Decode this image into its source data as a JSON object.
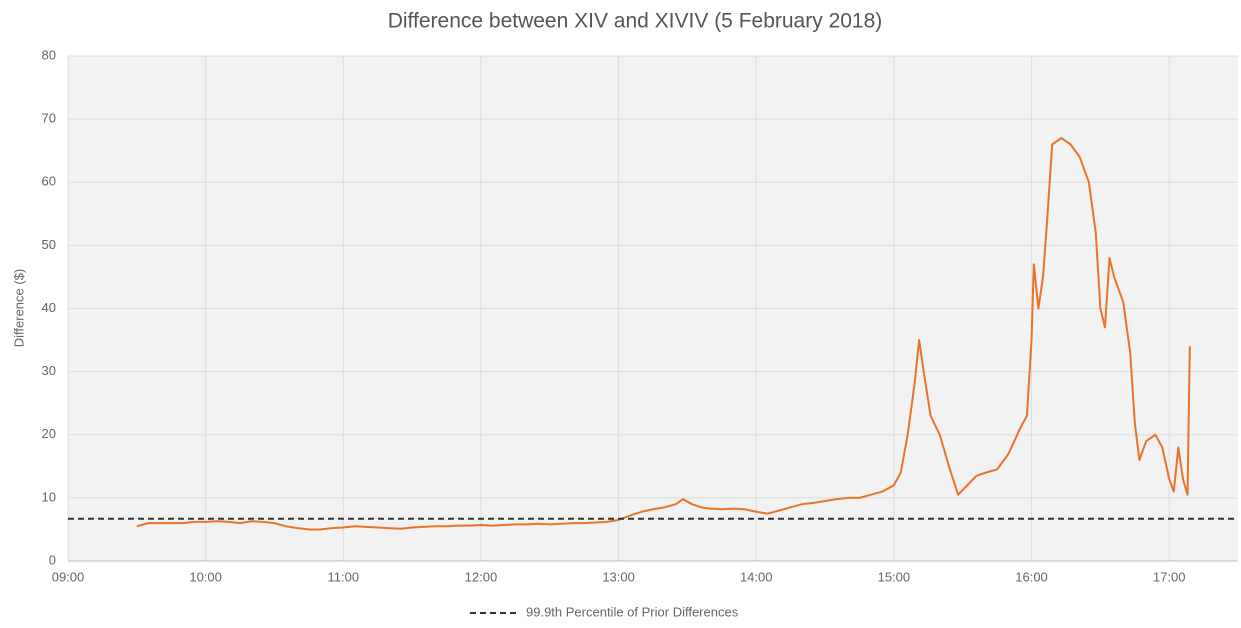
{
  "chart_data": {
    "type": "line",
    "title": "Difference between XIV and XIVIV (5 February 2018)",
    "ylabel": "Difference ($)",
    "x": [
      "09:30",
      "09:35",
      "09:40",
      "09:45",
      "09:50",
      "09:55",
      "10:00",
      "10:05",
      "10:10",
      "10:15",
      "10:20",
      "10:25",
      "10:30",
      "10:35",
      "10:40",
      "10:45",
      "10:50",
      "10:55",
      "11:00",
      "11:05",
      "11:10",
      "11:15",
      "11:20",
      "11:25",
      "11:30",
      "11:35",
      "11:40",
      "11:45",
      "11:50",
      "11:55",
      "12:00",
      "12:05",
      "12:10",
      "12:15",
      "12:20",
      "12:25",
      "12:30",
      "12:35",
      "12:40",
      "12:45",
      "12:50",
      "12:55",
      "13:00",
      "13:05",
      "13:10",
      "13:15",
      "13:20",
      "13:25",
      "13:28",
      "13:32",
      "13:36",
      "13:40",
      "13:45",
      "13:50",
      "13:55",
      "14:00",
      "14:05",
      "14:10",
      "14:15",
      "14:20",
      "14:25",
      "14:30",
      "14:35",
      "14:40",
      "14:45",
      "14:50",
      "14:55",
      "15:00",
      "15:03",
      "15:06",
      "15:09",
      "15:11",
      "15:13",
      "15:16",
      "15:20",
      "15:24",
      "15:28",
      "15:32",
      "15:36",
      "15:40",
      "15:45",
      "15:50",
      "15:55",
      "15:58",
      "16:00",
      "16:01",
      "16:03",
      "16:05",
      "16:07",
      "16:09",
      "16:13",
      "16:17",
      "16:21",
      "16:25",
      "16:28",
      "16:30",
      "16:32",
      "16:34",
      "16:36",
      "16:40",
      "16:43",
      "16:45",
      "16:47",
      "16:50",
      "16:54",
      "16:57",
      "17:00",
      "17:02",
      "17:04",
      "17:06",
      "17:08",
      "17:09"
    ],
    "series": [
      {
        "color": "#e8742a",
        "values": [
          5.5,
          6,
          6,
          6,
          6,
          6.2,
          6.2,
          6.3,
          6.2,
          6,
          6.3,
          6.2,
          6,
          5.5,
          5.2,
          5,
          5,
          5.2,
          5.3,
          5.5,
          5.4,
          5.3,
          5.2,
          5.1,
          5.3,
          5.4,
          5.5,
          5.5,
          5.6,
          5.6,
          5.7,
          5.6,
          5.7,
          5.8,
          5.8,
          5.9,
          5.8,
          5.9,
          6,
          6,
          6.1,
          6.2,
          6.5,
          7.2,
          7.8,
          8.2,
          8.5,
          9,
          9.8,
          9,
          8.5,
          8.3,
          8.2,
          8.3,
          8.2,
          7.8,
          7.5,
          8,
          8.5,
          9,
          9.2,
          9.5,
          9.8,
          10,
          10,
          10.5,
          11,
          12,
          14,
          20,
          28,
          35,
          30,
          23,
          20,
          15,
          10.5,
          12,
          13.5,
          14,
          14.5,
          17,
          21,
          23,
          35,
          47,
          40,
          45,
          55,
          66,
          67,
          66,
          64,
          60,
          52,
          40,
          37,
          48,
          45,
          41,
          33,
          22,
          16,
          19,
          20,
          18,
          13,
          11,
          18,
          13,
          10.5,
          34
        ]
      }
    ],
    "hline": {
      "name": "99.9th Percentile of Prior Differences",
      "value": 6.7,
      "color": "#333333"
    },
    "xlim": [
      "09:00",
      "17:30"
    ],
    "xticks": [
      "09:00",
      "10:00",
      "11:00",
      "12:00",
      "13:00",
      "14:00",
      "15:00",
      "16:00",
      "17:00"
    ],
    "ylim": [
      0,
      80
    ],
    "yticks": [
      0,
      10,
      20,
      30,
      40,
      50,
      60,
      70,
      80
    ],
    "grid": true
  }
}
